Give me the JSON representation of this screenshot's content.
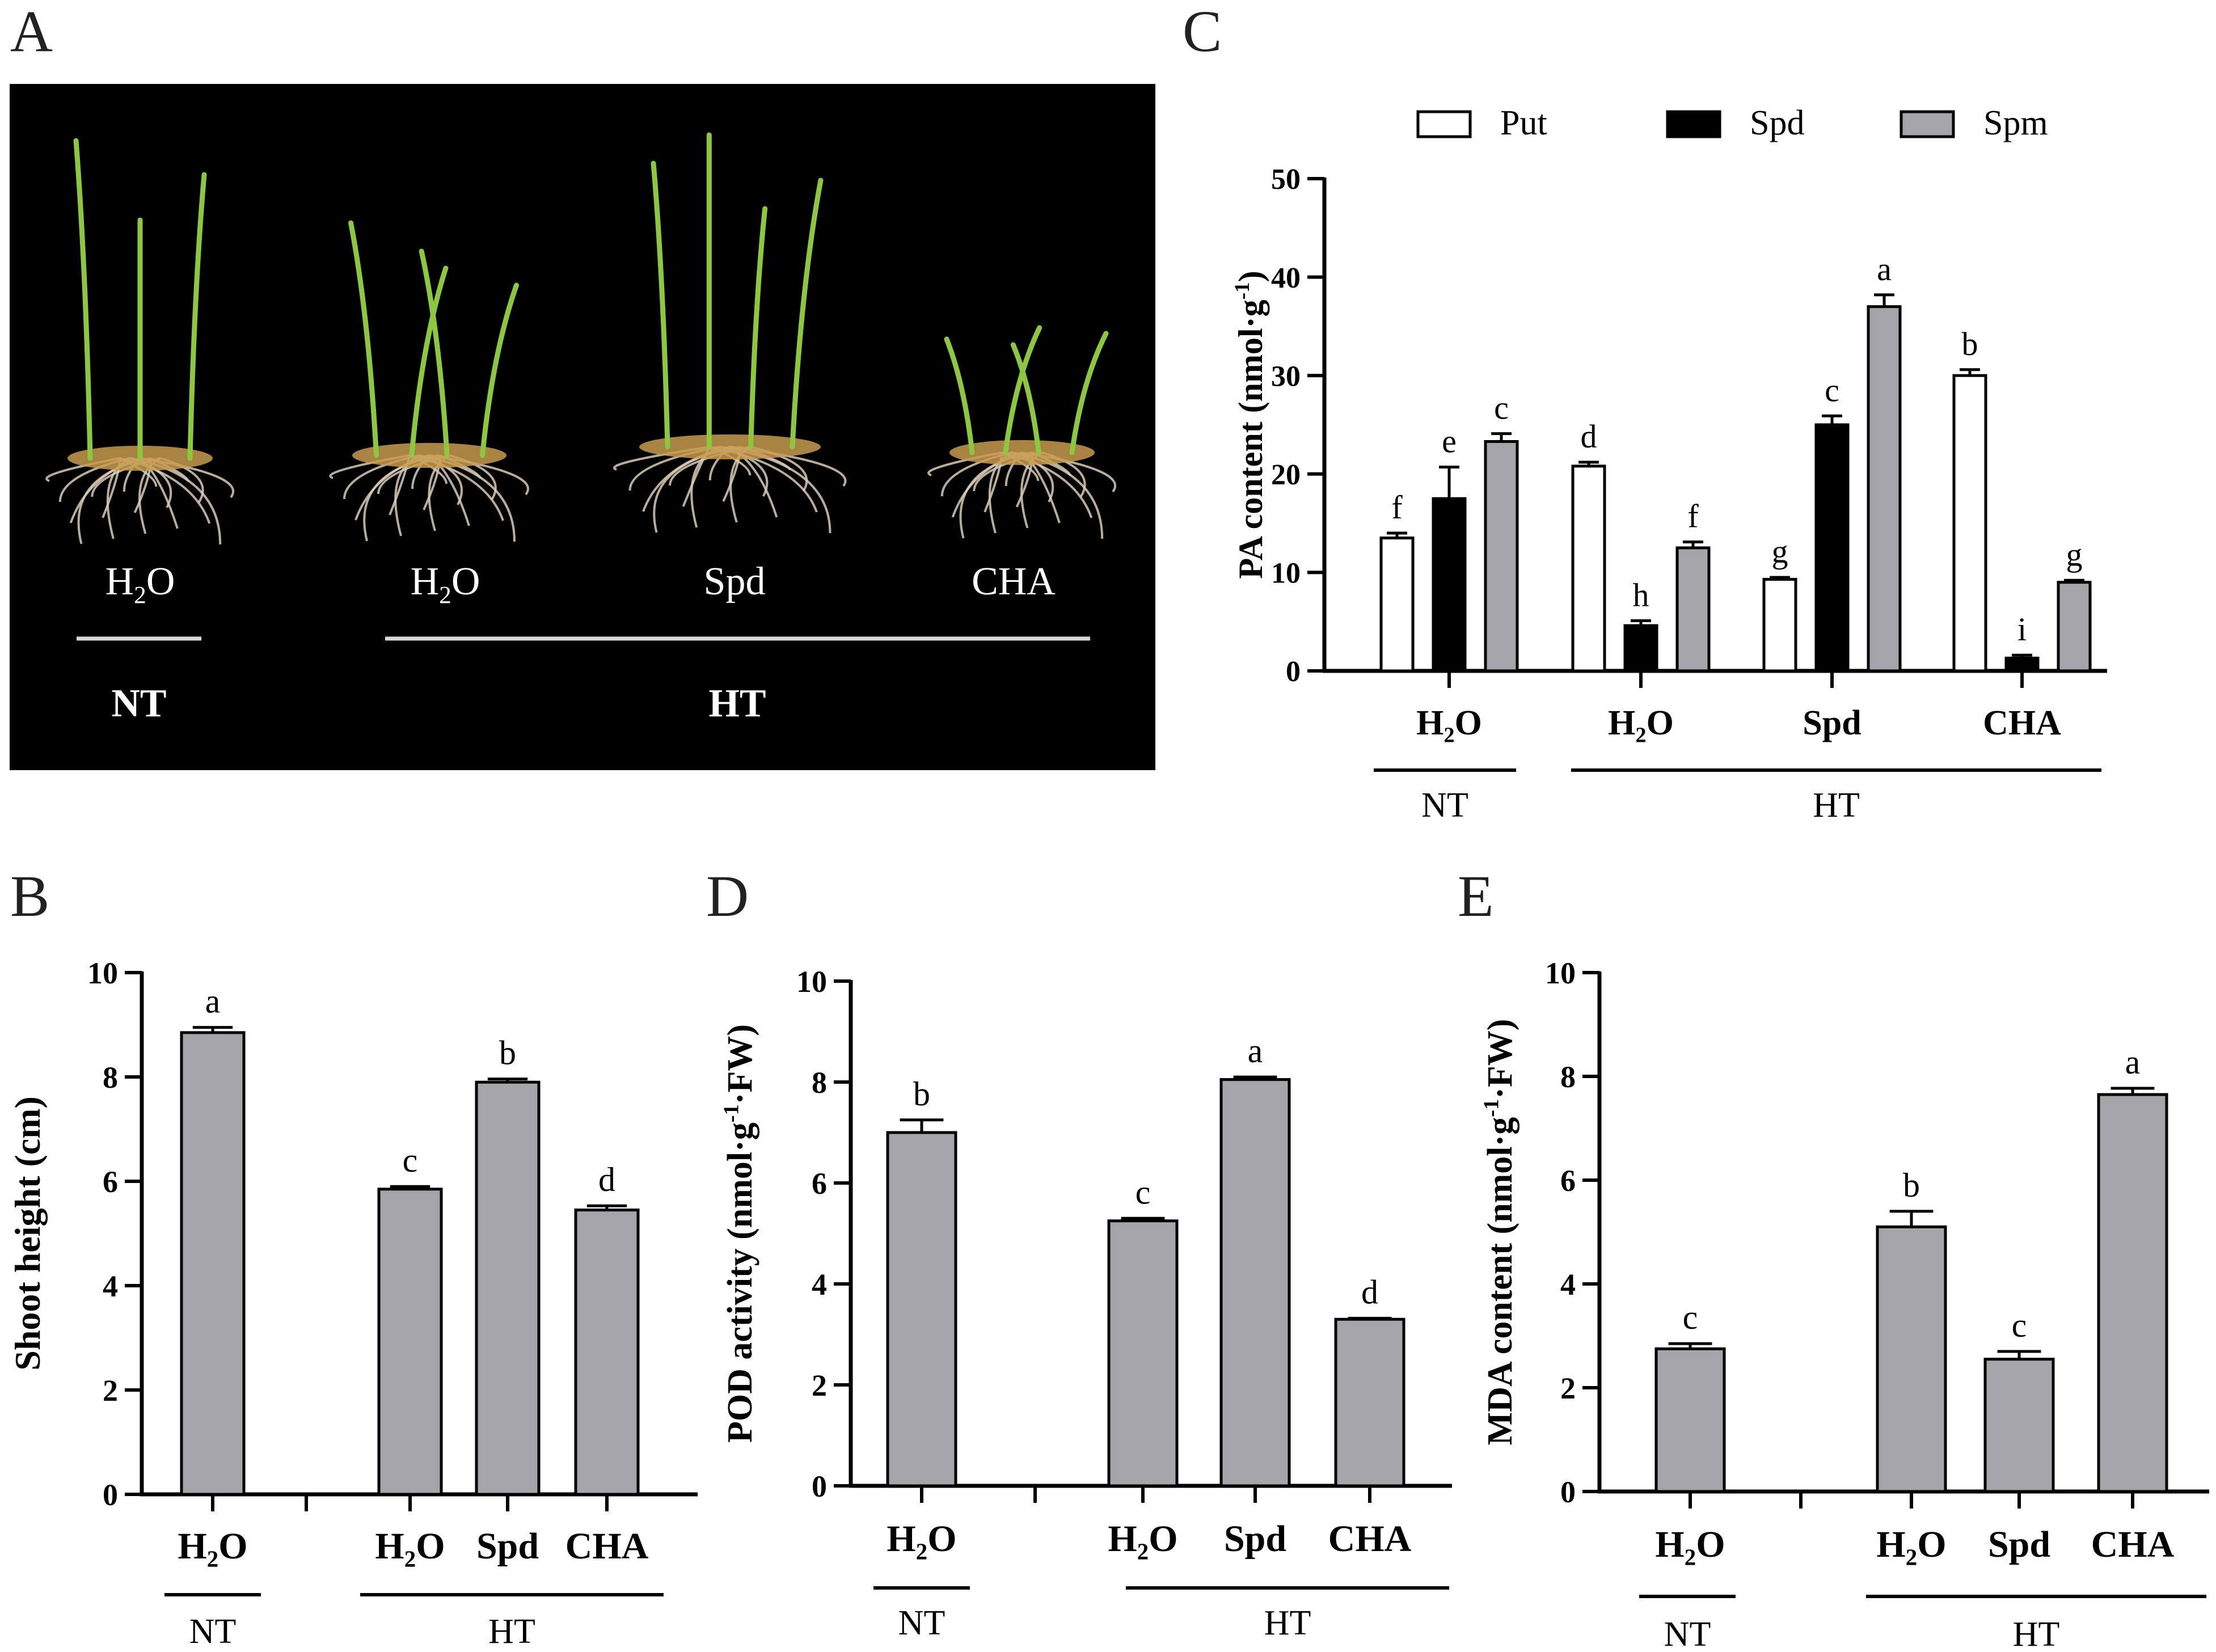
{
  "panels": {
    "A": {
      "letter": "A",
      "photo": {
        "labels": [
          "H2O",
          "H2O",
          "Spd",
          "CHA"
        ],
        "groups": [
          "NT",
          "HT"
        ]
      }
    },
    "B": {
      "letter": "B"
    },
    "C": {
      "letter": "C"
    },
    "D": {
      "letter": "D"
    },
    "E": {
      "letter": "E"
    }
  },
  "colors": {
    "put": "#ffffff",
    "spd": "#000000",
    "spm": "#a5a4aa",
    "bar": "#a5a4aa",
    "photo_bg": "#000000",
    "leaf": "#8dc63f",
    "root": "#d9cbb5"
  },
  "chart_data": [
    {
      "panel": "C",
      "type": "bar",
      "ylabel": "PA content (nmol·g-1)",
      "ylim": [
        0,
        50
      ],
      "yticks": [
        0,
        10,
        20,
        30,
        40,
        50
      ],
      "categories": [
        "H2O",
        "H2O",
        "Spd",
        "CHA"
      ],
      "groups": [
        {
          "label": "NT",
          "categories": [
            0
          ]
        },
        {
          "label": "HT",
          "categories": [
            1,
            2,
            3
          ]
        }
      ],
      "legend": [
        "Put",
        "Spd",
        "Spm"
      ],
      "legend_position": "top",
      "series": [
        {
          "name": "Put",
          "values": [
            13.5,
            20.8,
            9.3,
            30.0
          ],
          "errors": [
            0.5,
            0.4,
            0.2,
            0.6
          ],
          "letters": [
            "f",
            "d",
            "g",
            "b"
          ]
        },
        {
          "name": "Spd",
          "values": [
            17.5,
            4.6,
            25.0,
            1.3
          ],
          "errors": [
            3.2,
            0.5,
            0.9,
            0.3
          ],
          "letters": [
            "e",
            "h",
            "c",
            "i"
          ]
        },
        {
          "name": "Spm",
          "values": [
            23.3,
            12.5,
            37.0,
            9.0
          ],
          "errors": [
            0.8,
            0.6,
            1.2,
            0.2
          ],
          "letters": [
            "c",
            "f",
            "a",
            "g"
          ]
        }
      ]
    },
    {
      "panel": "B",
      "type": "bar",
      "ylabel": "Shoot height (cm)",
      "ylim": [
        0,
        10
      ],
      "yticks": [
        0,
        2,
        4,
        6,
        8,
        10
      ],
      "categories": [
        "H2O",
        "H2O",
        "Spd",
        "CHA"
      ],
      "groups": [
        {
          "label": "NT",
          "categories": [
            0
          ]
        },
        {
          "label": "HT",
          "categories": [
            1,
            2,
            3
          ]
        }
      ],
      "values": [
        8.85,
        5.85,
        7.9,
        5.45
      ],
      "errors": [
        0.1,
        0.05,
        0.06,
        0.08
      ],
      "letters": [
        "a",
        "c",
        "b",
        "d"
      ]
    },
    {
      "panel": "D",
      "type": "bar",
      "ylabel": "POD activity (nmol·g-1·FW)",
      "ylim": [
        0,
        10
      ],
      "yticks": [
        0,
        2,
        4,
        6,
        8,
        10
      ],
      "categories": [
        "H2O",
        "H2O",
        "Spd",
        "CHA"
      ],
      "groups": [
        {
          "label": "NT",
          "categories": [
            0
          ]
        },
        {
          "label": "HT",
          "categories": [
            1,
            2,
            3
          ]
        }
      ],
      "values": [
        7.0,
        5.25,
        8.05,
        3.3
      ],
      "errors": [
        0.25,
        0.05,
        0.05,
        0.02
      ],
      "letters": [
        "b",
        "c",
        "a",
        "d"
      ]
    },
    {
      "panel": "E",
      "type": "bar",
      "ylabel": "MDA content  (nmol·g-1·FW)",
      "ylim": [
        0,
        10
      ],
      "yticks": [
        0,
        2,
        4,
        6,
        8,
        10
      ],
      "categories": [
        "H2O",
        "H2O",
        "Spd",
        "CHA"
      ],
      "groups": [
        {
          "label": "NT",
          "categories": [
            0
          ]
        },
        {
          "label": "HT",
          "categories": [
            1,
            2,
            3
          ]
        }
      ],
      "values": [
        2.75,
        5.1,
        2.55,
        7.65
      ],
      "errors": [
        0.1,
        0.3,
        0.15,
        0.12
      ],
      "letters": [
        "c",
        "b",
        "c",
        "a"
      ]
    }
  ]
}
